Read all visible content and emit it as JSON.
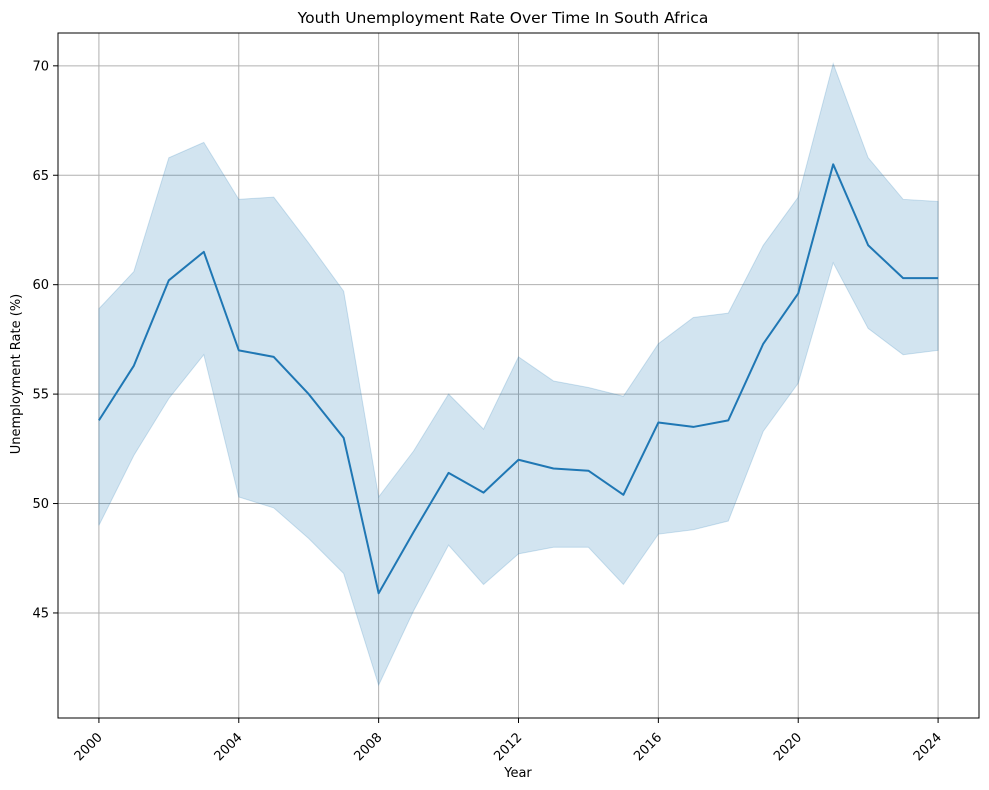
{
  "chart_data": {
    "type": "line",
    "title": "Youth Unemployment Rate Over Time In South Africa",
    "xlabel": "Year",
    "ylabel": "Unemployment Rate (%)",
    "xlim": [
      1998.83,
      2025.17
    ],
    "ylim": [
      40.2,
      71.5
    ],
    "grid": true,
    "xticks": [
      2000,
      2004,
      2008,
      2012,
      2016,
      2020,
      2024
    ],
    "xtick_labels": [
      "2000",
      "2004",
      "2008",
      "2012",
      "2016",
      "2020",
      "2024"
    ],
    "yticks": [
      45,
      50,
      55,
      60,
      65,
      70
    ],
    "ytick_labels": [
      "45",
      "50",
      "55",
      "60",
      "65",
      "70"
    ],
    "colors": {
      "line": "#1f77b4",
      "band": "#1f77b4",
      "grid": "#b0b0b0"
    },
    "x": [
      2000,
      2001,
      2002,
      2003,
      2004,
      2005,
      2006,
      2007,
      2008,
      2009,
      2010,
      2011,
      2012,
      2013,
      2014,
      2015,
      2016,
      2017,
      2018,
      2019,
      2020,
      2021,
      2022,
      2023,
      2024
    ],
    "series": [
      {
        "values": [
          53.8,
          56.3,
          60.2,
          61.5,
          57.0,
          56.7,
          55.0,
          53.0,
          45.9,
          48.7,
          51.4,
          50.5,
          52.0,
          51.6,
          51.5,
          50.4,
          53.7,
          53.5,
          53.8,
          57.3,
          59.6,
          65.5,
          61.8,
          60.3,
          60.3
        ],
        "lower": [
          49.0,
          52.2,
          54.8,
          56.8,
          50.3,
          49.8,
          48.4,
          46.8,
          41.7,
          45.1,
          48.1,
          46.3,
          47.7,
          48.0,
          48.0,
          46.3,
          48.6,
          48.8,
          49.2,
          53.3,
          55.5,
          61.0,
          58.0,
          56.8,
          57.0
        ],
        "upper": [
          58.9,
          60.6,
          65.8,
          66.5,
          63.9,
          64.0,
          61.9,
          59.7,
          50.3,
          52.4,
          55.0,
          53.4,
          56.7,
          55.6,
          55.3,
          54.9,
          57.3,
          58.5,
          58.7,
          61.8,
          64.0,
          70.1,
          65.8,
          63.9,
          63.8
        ]
      }
    ]
  }
}
